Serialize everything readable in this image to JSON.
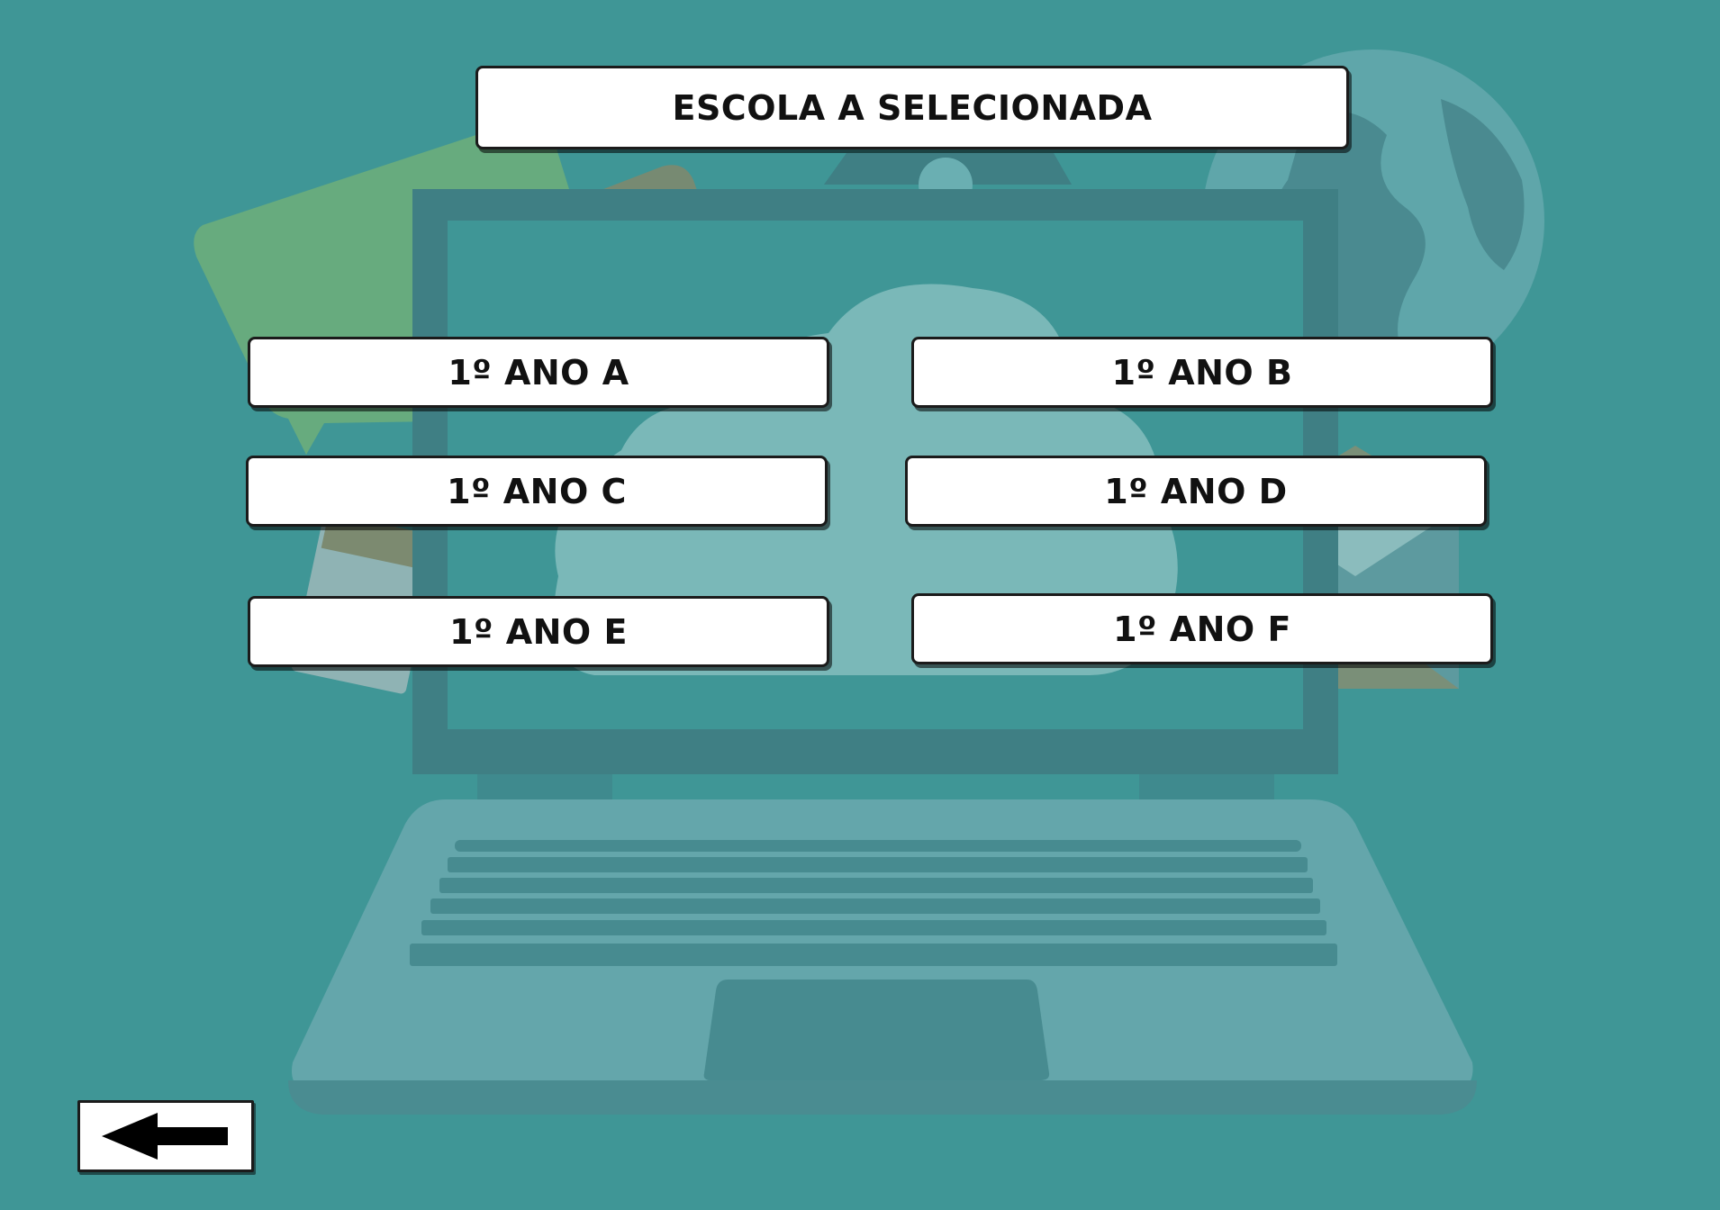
{
  "header": {
    "title": "ESCOLA A SELECIONADA"
  },
  "classes": [
    {
      "label": "1º ANO A"
    },
    {
      "label": "1º ANO B"
    },
    {
      "label": "1º ANO C"
    },
    {
      "label": "1º ANO D"
    },
    {
      "label": "1º ANO E"
    },
    {
      "label": "1º ANO F"
    }
  ],
  "navigation": {
    "back_icon": "arrow-left-icon"
  },
  "colors": {
    "background": "#3f9696",
    "panel": "#ffffff",
    "text": "#111111",
    "laptop": "#64a6ab",
    "screen_frame": "#3f7f84"
  }
}
